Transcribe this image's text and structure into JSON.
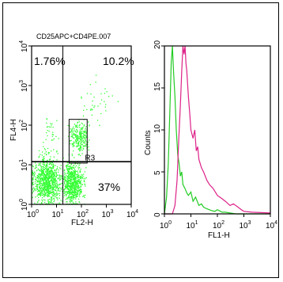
{
  "chart_data": [
    {
      "type": "scatter",
      "title": "CD25APC+CD4PE.007",
      "xlabel": "FL2-H",
      "ylabel": "FL4-H",
      "xscale": "log",
      "yscale": "log",
      "xlim": [
        1,
        10000
      ],
      "ylim": [
        1,
        10000
      ],
      "x_ticks": [
        "10",
        "10",
        "10",
        "10",
        "10"
      ],
      "x_exps": [
        "0",
        "1",
        "2",
        "3",
        "4"
      ],
      "y_ticks": [
        "10",
        "10",
        "10",
        "10",
        "10"
      ],
      "y_exps": [
        "0",
        "1",
        "2",
        "3",
        "4"
      ],
      "quadrant_x": 18,
      "quadrant_y": 12,
      "quadrants": {
        "upper_left": "1.76%",
        "upper_right": "10.2%",
        "lower_right": "37%"
      },
      "gate": {
        "name": "R3",
        "x": [
          32,
          170
        ],
        "y": [
          11,
          140
        ]
      },
      "point_color": "#33ff33",
      "clusters": [
        {
          "x": 4,
          "y": 4,
          "sx": 0.85,
          "sy": 0.9,
          "n": 900
        },
        {
          "x": 45,
          "y": 3.5,
          "sx": 0.65,
          "sy": 0.8,
          "n": 700
        },
        {
          "x": 80,
          "y": 50,
          "sx": 0.55,
          "sy": 0.6,
          "n": 260
        },
        {
          "x": 6,
          "y": 70,
          "sx": 0.5,
          "sy": 0.7,
          "n": 30
        },
        {
          "x": 400,
          "y": 300,
          "sx": 1.0,
          "sy": 1.0,
          "n": 40
        }
      ]
    },
    {
      "type": "line",
      "xlabel": "FL1-H",
      "ylabel": "Counts",
      "xscale": "log",
      "xlim": [
        1,
        10000
      ],
      "ylim": [
        0,
        20
      ],
      "x_ticks": [
        "10",
        "10",
        "10",
        "10",
        "10"
      ],
      "x_exps": [
        "0",
        "1",
        "2",
        "3",
        "4"
      ],
      "y_ticks": [
        "0",
        "5",
        "10",
        "15",
        "20"
      ],
      "series": [
        {
          "color": "#22cc22",
          "x": [
            1,
            1.2,
            1.4,
            1.6,
            1.8,
            2.0,
            2.2,
            2.5,
            2.8,
            3.2,
            3.6,
            4.0,
            4.5,
            5.0,
            6.0,
            7.0,
            8.0,
            10,
            12,
            15,
            20,
            25,
            30,
            40,
            60,
            80,
            100,
            150,
            200,
            300,
            500,
            1000,
            10000
          ],
          "y": [
            0,
            2,
            6,
            12,
            18,
            20,
            17,
            14,
            10,
            7,
            6,
            4.5,
            5,
            3.5,
            3,
            2.5,
            2.2,
            2.6,
            1.5,
            2,
            1,
            1.2,
            0.8,
            0.6,
            0.4,
            0.3,
            0.5,
            0.2,
            0.2,
            0.1,
            0,
            0,
            0
          ]
        },
        {
          "color": "#dd2288",
          "x": [
            1,
            2,
            2.5,
            3,
            3.5,
            4,
            4.5,
            5,
            5.5,
            6,
            6.5,
            7,
            8,
            9,
            10,
            12,
            14,
            16,
            18,
            20,
            25,
            30,
            40,
            50,
            70,
            100,
            150,
            200,
            300,
            400,
            600,
            800,
            1000,
            2000,
            10000
          ],
          "y": [
            0,
            0,
            1,
            4,
            9,
            13,
            17,
            20,
            19,
            20,
            18,
            17,
            14,
            12,
            10,
            9,
            10,
            7.5,
            8,
            6.5,
            5.5,
            5,
            4,
            3.5,
            3,
            2.2,
            1.8,
            1.5,
            1,
            1.2,
            0.8,
            0.5,
            0.3,
            0.2,
            0.1
          ]
        }
      ]
    }
  ]
}
